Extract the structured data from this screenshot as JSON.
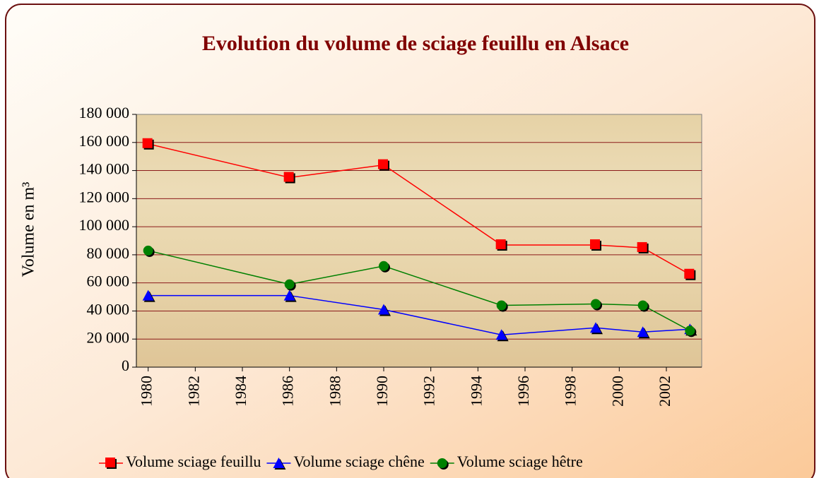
{
  "chart_data": {
    "type": "line",
    "title": "Evolution du volume de sciage feuillu en Alsace",
    "y_label": "Volume en m³",
    "x": [
      1980,
      1986,
      1990,
      1995,
      1999,
      2001,
      2003
    ],
    "xlim": [
      1979.5,
      2003.5
    ],
    "xticks": [
      1980,
      1982,
      1984,
      1986,
      1988,
      1990,
      1992,
      1994,
      1996,
      1998,
      2000,
      2002
    ],
    "ylim": [
      0,
      180000
    ],
    "yticks": [
      {
        "value": 0,
        "label": "0"
      },
      {
        "value": 20000,
        "label": "20 000"
      },
      {
        "value": 40000,
        "label": "40 000"
      },
      {
        "value": 60000,
        "label": "60 000"
      },
      {
        "value": 80000,
        "label": "80 000"
      },
      {
        "value": 100000,
        "label": "100 000"
      },
      {
        "value": 120000,
        "label": "120 000"
      },
      {
        "value": 140000,
        "label": "140 000"
      },
      {
        "value": 160000,
        "label": "160 000"
      },
      {
        "value": 180000,
        "label": "180 000"
      }
    ],
    "grid": true,
    "legend": "bottom",
    "series": [
      {
        "name": "Volume sciage feuillu",
        "color": "#ff0000",
        "marker": "square",
        "values": [
          159000,
          135000,
          144000,
          87000,
          87000,
          85000,
          66000
        ]
      },
      {
        "name": "Volume sciage chêne",
        "color": "#0000ff",
        "marker": "triangle",
        "values": [
          51000,
          51000,
          41000,
          23000,
          28000,
          25000,
          27000
        ]
      },
      {
        "name": "Volume sciage hêtre",
        "color": "#008000",
        "marker": "circle",
        "values": [
          83000,
          59000,
          72000,
          44000,
          45000,
          44000,
          26000
        ]
      }
    ]
  }
}
